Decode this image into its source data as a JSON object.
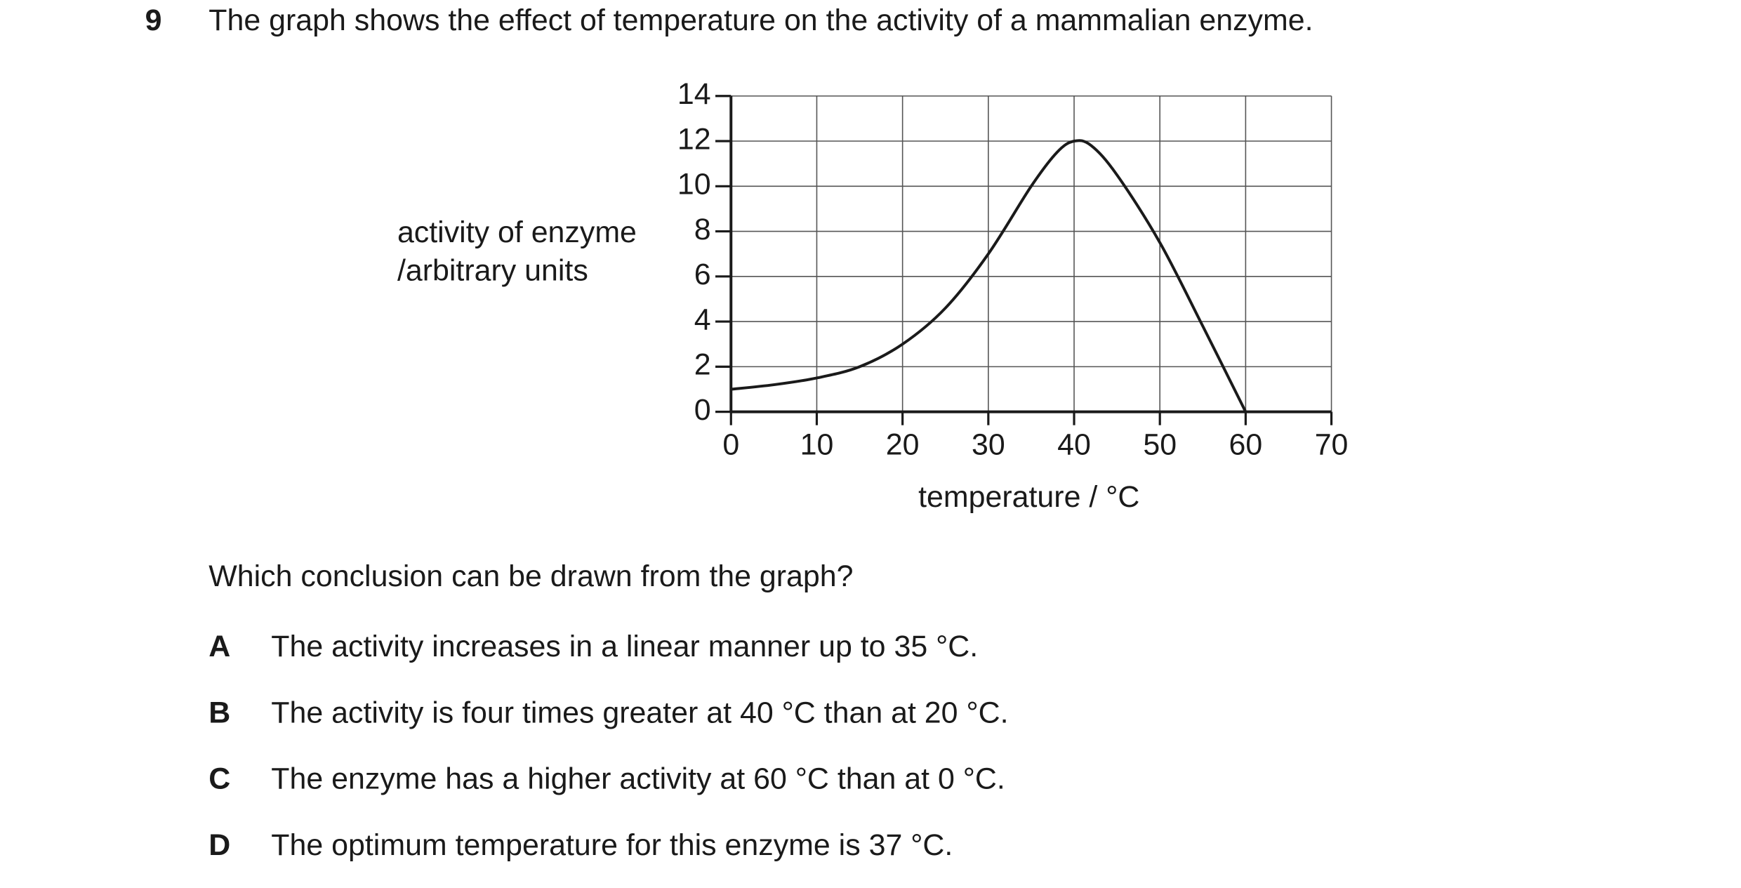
{
  "question": {
    "number": "9",
    "text": "The graph shows the effect of temperature on the activity of a mammalian enzyme."
  },
  "chart_data": {
    "type": "line",
    "ylabel": [
      "activity of enzyme",
      "/arbitrary units"
    ],
    "xlabel": "temperature / °C",
    "x": [
      0,
      5,
      10,
      15,
      20,
      25,
      30,
      35,
      38,
      40,
      42,
      45,
      50,
      55,
      60
    ],
    "series": [
      {
        "color": "#1a1a1a",
        "values": [
          1,
          1.2,
          1.5,
          2,
          3,
          4.6,
          7,
          10,
          11.5,
          12,
          11.8,
          10.5,
          7.5,
          3.8,
          0
        ]
      }
    ],
    "xlim": [
      0,
      70
    ],
    "xticks": [
      0,
      10,
      20,
      30,
      40,
      50,
      60,
      70
    ],
    "ylim": [
      0,
      14
    ],
    "yticks": [
      0,
      2,
      4,
      6,
      8,
      10,
      12,
      14
    ],
    "grid": true
  },
  "prompt": "Which conclusion can be drawn from the graph?",
  "options": [
    {
      "letter": "A",
      "text": "The activity increases in a linear manner up to 35 °C."
    },
    {
      "letter": "B",
      "text": "The activity is four times greater at 40 °C than at 20 °C."
    },
    {
      "letter": "C",
      "text": "The enzyme has a higher activity at 60 °C than at 0 °C."
    },
    {
      "letter": "D",
      "text": "The optimum temperature for this enzyme is 37 °C."
    }
  ]
}
